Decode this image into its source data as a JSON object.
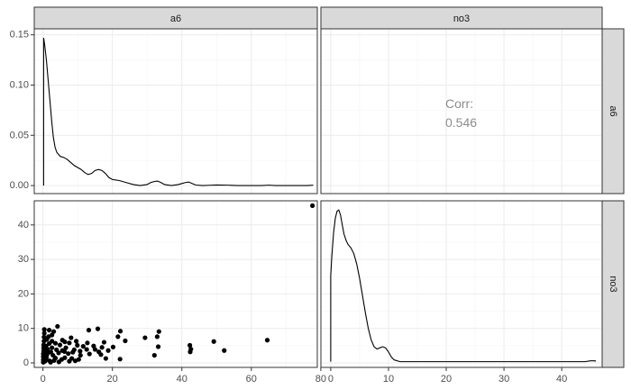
{
  "chart_data": {
    "type": "scatter",
    "layout": "pairs-matrix",
    "variables": [
      "a6",
      "no3"
    ],
    "grid": true,
    "panels": [
      {
        "id": "a6-density",
        "row": "a6",
        "col": "a6",
        "type": "density",
        "xlim": [
          -2.5,
          79
        ],
        "ylim": [
          -0.008,
          0.156
        ],
        "yticks": [
          0.0,
          0.05,
          0.1,
          0.15
        ],
        "ytick_labels": [
          "0.00",
          "0.05",
          "0.10",
          "0.15"
        ],
        "curve": [
          [
            0.2,
            0.0
          ],
          [
            0.2,
            0.147
          ],
          [
            0.5,
            0.14
          ],
          [
            1,
            0.125
          ],
          [
            1.5,
            0.105
          ],
          [
            2,
            0.085
          ],
          [
            2.5,
            0.065
          ],
          [
            3,
            0.048
          ],
          [
            3.5,
            0.038
          ],
          [
            4,
            0.033
          ],
          [
            5,
            0.029
          ],
          [
            6,
            0.028
          ],
          [
            7,
            0.026
          ],
          [
            8,
            0.023
          ],
          [
            9,
            0.02
          ],
          [
            10,
            0.018
          ],
          [
            11,
            0.016
          ],
          [
            12,
            0.013
          ],
          [
            13,
            0.011
          ],
          [
            14,
            0.012
          ],
          [
            15,
            0.015
          ],
          [
            16,
            0.016
          ],
          [
            17,
            0.015
          ],
          [
            18,
            0.012
          ],
          [
            19,
            0.008
          ],
          [
            20,
            0.006
          ],
          [
            22,
            0.005
          ],
          [
            24,
            0.003
          ],
          [
            26,
            0.001
          ],
          [
            28,
            0.0
          ],
          [
            30,
            0.001
          ],
          [
            31,
            0.003
          ],
          [
            32,
            0.004
          ],
          [
            33,
            0.0045
          ],
          [
            34,
            0.003
          ],
          [
            35,
            0.001
          ],
          [
            37,
            0.0
          ],
          [
            39,
            0.001
          ],
          [
            40,
            0.002
          ],
          [
            41,
            0.003
          ],
          [
            42,
            0.0035
          ],
          [
            43,
            0.002
          ],
          [
            44,
            0.0005
          ],
          [
            46,
            0.0
          ],
          [
            48,
            0.0003
          ],
          [
            50,
            0.0006
          ],
          [
            53,
            0.0004
          ],
          [
            56,
            0.0
          ],
          [
            63,
            0.0
          ],
          [
            65,
            0.0004
          ],
          [
            67,
            0.0
          ],
          [
            76,
            0.0
          ],
          [
            77.7,
            0.0003
          ],
          [
            77.7,
            0.0
          ]
        ]
      },
      {
        "id": "corr",
        "row": "a6",
        "col": "no3",
        "type": "text",
        "xlim": [
          -1.7,
          47
        ],
        "ylim": [
          0,
          1
        ],
        "label": "Corr:",
        "value": "0.546"
      },
      {
        "id": "scatter",
        "row": "no3",
        "col": "a6",
        "type": "scatter",
        "xlim": [
          -2.5,
          79
        ],
        "ylim": [
          -1.3,
          47
        ],
        "xticks": [
          0,
          20,
          40,
          60,
          80
        ],
        "xtick_labels": [
          "0",
          "20",
          "40",
          "60",
          "80"
        ],
        "yticks": [
          0,
          10,
          20,
          30,
          40
        ],
        "ytick_labels": [
          "0",
          "10",
          "20",
          "30",
          "40"
        ],
        "points": [
          [
            77.6,
            45.6
          ],
          [
            64.6,
            6.6
          ],
          [
            52.2,
            3.6
          ],
          [
            49.2,
            6.2
          ],
          [
            42.3,
            5.1
          ],
          [
            42.6,
            4.0
          ],
          [
            42.4,
            3.2
          ],
          [
            33.4,
            9.1
          ],
          [
            32.9,
            7.6
          ],
          [
            33.2,
            4.7
          ],
          [
            32.1,
            2.2
          ],
          [
            29.4,
            7.3
          ],
          [
            23.7,
            6.4
          ],
          [
            22.3,
            9.2
          ],
          [
            22.2,
            1.1
          ],
          [
            21.6,
            7.6
          ],
          [
            20.2,
            4.6
          ],
          [
            18.8,
            3.6
          ],
          [
            17.6,
            6.0
          ],
          [
            17.0,
            4.5
          ],
          [
            16.1,
            3.2
          ],
          [
            15.8,
            9.9
          ],
          [
            16.7,
            2.4
          ],
          [
            13.2,
            9.5
          ],
          [
            12.8,
            5.8
          ],
          [
            12.6,
            3.9
          ],
          [
            13.4,
            2.6
          ],
          [
            11.6,
            4.8
          ],
          [
            10.7,
            3.4
          ],
          [
            10.8,
            2.2
          ],
          [
            9.9,
            5.1
          ],
          [
            9.6,
            6.3
          ],
          [
            9.0,
            3.8
          ],
          [
            8.6,
            3.1
          ],
          [
            8.1,
            7.3
          ],
          [
            8.3,
            1.3
          ],
          [
            7.6,
            5.8
          ],
          [
            7.6,
            0.5
          ],
          [
            7.3,
            2.7
          ],
          [
            6.6,
            4.4
          ],
          [
            6.2,
            3.3
          ],
          [
            6.3,
            6.1
          ],
          [
            6.3,
            1.5
          ],
          [
            5.6,
            6.6
          ],
          [
            5.6,
            3.6
          ],
          [
            5.4,
            1.0
          ],
          [
            4.9,
            5.2
          ],
          [
            4.5,
            2.9
          ],
          [
            4.2,
            10.6
          ],
          [
            3.9,
            3.8
          ],
          [
            3.6,
            5.7
          ],
          [
            3.6,
            1.4
          ],
          [
            2.9,
            2.2
          ],
          [
            2.6,
            6.3
          ],
          [
            2.6,
            4.4
          ],
          [
            2.3,
            3.1
          ],
          [
            1.9,
            0.6
          ],
          [
            1.8,
            9.5
          ],
          [
            1.8,
            5.6
          ],
          [
            1.6,
            7.6
          ],
          [
            1.3,
            4.0
          ],
          [
            1.2,
            2.5
          ],
          [
            0.8,
            1.2
          ],
          [
            0.4,
            9.7
          ],
          [
            0.4,
            8.6
          ],
          [
            0.3,
            7.5
          ],
          [
            0.3,
            6.3
          ],
          [
            0.2,
            5.2
          ],
          [
            0.2,
            4.3
          ],
          [
            0.2,
            3.4
          ],
          [
            0.1,
            2.6
          ],
          [
            0.1,
            1.8
          ],
          [
            0.1,
            0.9
          ],
          [
            0.1,
            0.2
          ],
          [
            0.6,
            0.5
          ],
          [
            1.0,
            1.6
          ],
          [
            0.5,
            3.0
          ],
          [
            0.9,
            4.9
          ],
          [
            1.1,
            6.8
          ],
          [
            2.2,
            0.2
          ],
          [
            3.2,
            0.7
          ],
          [
            4.6,
            0.3
          ],
          [
            9.3,
            0.6
          ],
          [
            10.3,
            1.0
          ],
          [
            14.6,
            4.9
          ],
          [
            15.0,
            3.9
          ],
          [
            18.1,
            1.3
          ],
          [
            2.6,
            8.1
          ],
          [
            3.1,
            9.1
          ],
          [
            1.5,
            3.3
          ]
        ]
      },
      {
        "id": "no3-density",
        "row": "no3",
        "col": "no3",
        "type": "density",
        "xlim": [
          -1.7,
          47
        ],
        "ylim": [
          -0.01,
          0.28
        ],
        "xticks": [
          0,
          10,
          20,
          30,
          40
        ],
        "xtick_labels": [
          "0",
          "10",
          "20",
          "30",
          "40"
        ],
        "curve": [
          [
            0.0,
            0.0
          ],
          [
            0.0,
            0.15
          ],
          [
            0.2,
            0.185
          ],
          [
            0.5,
            0.225
          ],
          [
            0.8,
            0.25
          ],
          [
            1.1,
            0.262
          ],
          [
            1.4,
            0.264
          ],
          [
            1.7,
            0.255
          ],
          [
            2.0,
            0.238
          ],
          [
            2.3,
            0.222
          ],
          [
            2.7,
            0.21
          ],
          [
            3.0,
            0.204
          ],
          [
            3.5,
            0.198
          ],
          [
            4.0,
            0.188
          ],
          [
            4.5,
            0.17
          ],
          [
            5.0,
            0.145
          ],
          [
            5.5,
            0.115
          ],
          [
            6.0,
            0.085
          ],
          [
            6.5,
            0.058
          ],
          [
            7.0,
            0.038
          ],
          [
            7.5,
            0.026
          ],
          [
            8.0,
            0.022
          ],
          [
            8.5,
            0.024
          ],
          [
            9.0,
            0.026
          ],
          [
            9.5,
            0.024
          ],
          [
            10.0,
            0.017
          ],
          [
            10.5,
            0.008
          ],
          [
            11.0,
            0.003
          ],
          [
            12.0,
            0.0
          ],
          [
            44.0,
            0.0
          ],
          [
            45.0,
            0.0015
          ],
          [
            45.8,
            0.0015
          ],
          [
            45.8,
            0.0
          ]
        ]
      }
    ]
  }
}
